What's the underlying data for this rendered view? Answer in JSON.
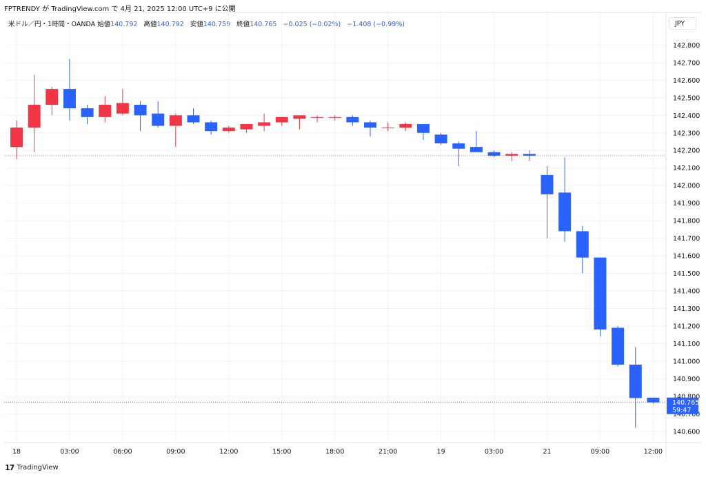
{
  "header": {
    "published": "FPTRENDY が TradingView.com で 4月 21, 2025 12:00 UTC+9 に公開"
  },
  "legend": {
    "symbol": "米ドル／円・1時間・OANDA",
    "open_label": "始値",
    "open": "140.792",
    "high_label": "高値",
    "high": "140.792",
    "low_label": "安値",
    "low": "140.759",
    "close_label": "終値",
    "close": "140.765",
    "change": "−0.025 (−0.02%)",
    "change2": "−1.408 (−0.99%)"
  },
  "currency": "JPY",
  "footer": {
    "brand": "TradingView"
  },
  "colors": {
    "up": "#f23645",
    "down": "#2962ff",
    "grid": "#f0f3fa",
    "axis_text": "#131722",
    "prev_close_line": "#9598a1",
    "last_price_line": "#2962ff"
  },
  "chart_data": {
    "type": "candlestick",
    "ylim": [
      140.56,
      142.88
    ],
    "y_ticks": [
      "142.800",
      "142.700",
      "142.600",
      "142.500",
      "142.400",
      "142.300",
      "142.200",
      "142.100",
      "142.000",
      "141.900",
      "141.800",
      "141.700",
      "141.600",
      "141.500",
      "141.400",
      "141.300",
      "141.200",
      "141.100",
      "141.000",
      "140.900",
      "140.800",
      "140.700",
      "140.600"
    ],
    "x_labels": [
      {
        "label": "18",
        "index": 0
      },
      {
        "label": "03:00",
        "index": 3
      },
      {
        "label": "06:00",
        "index": 6
      },
      {
        "label": "09:00",
        "index": 9
      },
      {
        "label": "12:00",
        "index": 12
      },
      {
        "label": "15:00",
        "index": 15
      },
      {
        "label": "18:00",
        "index": 18
      },
      {
        "label": "21:00",
        "index": 21
      },
      {
        "label": "19",
        "index": 24
      },
      {
        "label": "03:00",
        "index": 27
      },
      {
        "label": "21",
        "index": 30
      },
      {
        "label": "09:00",
        "index": 33
      },
      {
        "label": "12:00",
        "index": 36
      }
    ],
    "prev_close": 142.17,
    "last_price": "140.765",
    "countdown": "59:47",
    "candles": [
      {
        "o": 142.22,
        "h": 142.37,
        "l": 142.15,
        "c": 142.33
      },
      {
        "o": 142.33,
        "h": 142.63,
        "l": 142.19,
        "c": 142.46
      },
      {
        "o": 142.46,
        "h": 142.56,
        "l": 142.4,
        "c": 142.55
      },
      {
        "o": 142.55,
        "h": 142.72,
        "l": 142.37,
        "c": 142.44
      },
      {
        "o": 142.44,
        "h": 142.46,
        "l": 142.35,
        "c": 142.39
      },
      {
        "o": 142.39,
        "h": 142.51,
        "l": 142.36,
        "c": 142.46
      },
      {
        "o": 142.41,
        "h": 142.55,
        "l": 142.4,
        "c": 142.47
      },
      {
        "o": 142.46,
        "h": 142.48,
        "l": 142.31,
        "c": 142.4
      },
      {
        "o": 142.41,
        "h": 142.48,
        "l": 142.33,
        "c": 142.34
      },
      {
        "o": 142.34,
        "h": 142.41,
        "l": 142.22,
        "c": 142.4
      },
      {
        "o": 142.4,
        "h": 142.44,
        "l": 142.35,
        "c": 142.36
      },
      {
        "o": 142.36,
        "h": 142.37,
        "l": 142.29,
        "c": 142.31
      },
      {
        "o": 142.31,
        "h": 142.34,
        "l": 142.3,
        "c": 142.33
      },
      {
        "o": 142.32,
        "h": 142.35,
        "l": 142.3,
        "c": 142.35
      },
      {
        "o": 142.34,
        "h": 142.41,
        "l": 142.31,
        "c": 142.36
      },
      {
        "o": 142.36,
        "h": 142.39,
        "l": 142.34,
        "c": 142.39
      },
      {
        "o": 142.38,
        "h": 142.4,
        "l": 142.32,
        "c": 142.4
      },
      {
        "o": 142.39,
        "h": 142.4,
        "l": 142.36,
        "c": 142.39
      },
      {
        "o": 142.39,
        "h": 142.4,
        "l": 142.37,
        "c": 142.39
      },
      {
        "o": 142.39,
        "h": 142.4,
        "l": 142.34,
        "c": 142.36
      },
      {
        "o": 142.36,
        "h": 142.37,
        "l": 142.28,
        "c": 142.33
      },
      {
        "o": 142.33,
        "h": 142.36,
        "l": 142.31,
        "c": 142.33
      },
      {
        "o": 142.33,
        "h": 142.36,
        "l": 142.31,
        "c": 142.35
      },
      {
        "o": 142.35,
        "h": 142.35,
        "l": 142.26,
        "c": 142.3
      },
      {
        "o": 142.29,
        "h": 142.3,
        "l": 142.23,
        "c": 142.24
      },
      {
        "o": 142.24,
        "h": 142.25,
        "l": 142.11,
        "c": 142.21
      },
      {
        "o": 142.22,
        "h": 142.31,
        "l": 142.19,
        "c": 142.19
      },
      {
        "o": 142.19,
        "h": 142.2,
        "l": 142.16,
        "c": 142.17
      },
      {
        "o": 142.17,
        "h": 142.19,
        "l": 142.14,
        "c": 142.18
      },
      {
        "o": 142.18,
        "h": 142.2,
        "l": 142.14,
        "c": 142.17
      },
      {
        "o": 142.06,
        "h": 142.11,
        "l": 141.7,
        "c": 141.95
      },
      {
        "o": 141.96,
        "h": 142.16,
        "l": 141.68,
        "c": 141.74
      },
      {
        "o": 141.74,
        "h": 141.77,
        "l": 141.5,
        "c": 141.59
      },
      {
        "o": 141.59,
        "h": 141.59,
        "l": 141.14,
        "c": 141.18
      },
      {
        "o": 141.19,
        "h": 141.2,
        "l": 140.97,
        "c": 140.98
      },
      {
        "o": 140.98,
        "h": 141.08,
        "l": 140.62,
        "c": 140.79
      },
      {
        "o": 140.792,
        "h": 140.792,
        "l": 140.759,
        "c": 140.765
      }
    ]
  }
}
